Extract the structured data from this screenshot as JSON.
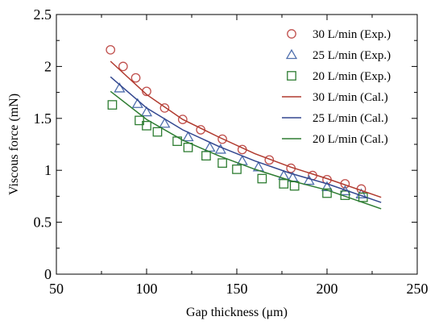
{
  "chart_data": {
    "type": "scatter",
    "xlabel": "Gap thickness (μm)",
    "ylabel": "Viscous force (mN)",
    "xlim": [
      50,
      250
    ],
    "ylim": [
      0,
      2.5
    ],
    "xticks": [
      "50",
      "100",
      "150",
      "200",
      "250"
    ],
    "yticks": [
      "0",
      "0.5",
      "1",
      "1.5",
      "2",
      "2.5"
    ],
    "grid": false,
    "legend_position": "top-right",
    "series": [
      {
        "name": "30 L/min (Exp.)",
        "kind": "marker",
        "marker": "circle",
        "color": "#c0504d",
        "x": [
          80,
          87,
          94,
          100,
          110,
          120,
          130,
          142,
          153,
          168,
          180,
          192,
          200,
          210,
          219
        ],
        "y": [
          2.16,
          2.0,
          1.89,
          1.76,
          1.6,
          1.49,
          1.39,
          1.3,
          1.2,
          1.1,
          1.02,
          0.95,
          0.91,
          0.87,
          0.82
        ]
      },
      {
        "name": "25 L/min (Exp.)",
        "kind": "marker",
        "marker": "triangle",
        "color": "#4f6fad",
        "x": [
          85,
          95,
          100,
          110,
          123,
          135,
          141,
          153,
          162,
          176,
          181,
          190,
          200,
          210,
          219
        ],
        "y": [
          1.79,
          1.64,
          1.56,
          1.45,
          1.32,
          1.22,
          1.2,
          1.09,
          1.03,
          0.95,
          0.93,
          0.9,
          0.84,
          0.8,
          0.77
        ]
      },
      {
        "name": "20 L/min (Exp.)",
        "kind": "marker",
        "marker": "square",
        "color": "#2e7d32",
        "x": [
          81,
          96,
          100,
          106,
          117,
          123,
          133,
          142,
          150,
          164,
          176,
          182,
          200,
          210,
          220
        ],
        "y": [
          1.63,
          1.48,
          1.43,
          1.37,
          1.28,
          1.22,
          1.14,
          1.07,
          1.01,
          0.92,
          0.87,
          0.85,
          0.78,
          0.76,
          0.74
        ]
      },
      {
        "name": "30 L/min (Cal.)",
        "kind": "line",
        "color": "#b03a2e",
        "x": [
          80,
          100,
          120,
          140,
          160,
          180,
          200,
          230
        ],
        "y": [
          2.05,
          1.73,
          1.49,
          1.32,
          1.16,
          1.03,
          0.92,
          0.74
        ]
      },
      {
        "name": "25 L/min (Cal.)",
        "kind": "line",
        "color": "#33478f",
        "x": [
          80,
          100,
          120,
          140,
          160,
          180,
          200,
          230
        ],
        "y": [
          1.9,
          1.6,
          1.39,
          1.23,
          1.09,
          0.97,
          0.87,
          0.69
        ]
      },
      {
        "name": "20 L/min (Cal.)",
        "kind": "line",
        "color": "#2e7d32",
        "x": [
          80,
          100,
          120,
          140,
          160,
          180,
          200,
          230
        ],
        "y": [
          1.76,
          1.49,
          1.29,
          1.14,
          1.01,
          0.9,
          0.81,
          0.63
        ]
      }
    ]
  }
}
